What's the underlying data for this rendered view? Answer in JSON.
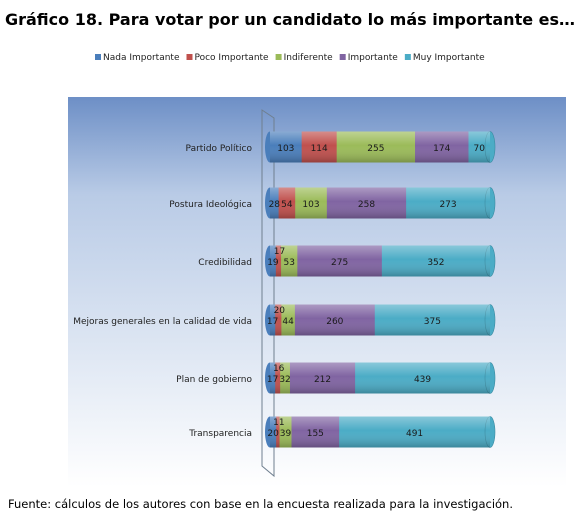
{
  "chart_data": {
    "type": "bar",
    "orientation": "horizontal",
    "stacked": true,
    "title": "Gráfico 18. Para votar por un candidato lo más importante es…",
    "categories": [
      "Partido Político",
      "Postura Ideológica",
      "Credibilidad",
      "Mejoras generales en la calidad de vida",
      "Plan de gobierno",
      "Transparencia"
    ],
    "series": [
      {
        "name": "Nada Importante",
        "color": "#4a7ebb",
        "values": [
          103,
          28,
          19,
          17,
          17,
          20
        ]
      },
      {
        "name": "Poco Importante",
        "color": "#c0504d",
        "values": [
          114,
          54,
          17,
          20,
          16,
          11
        ]
      },
      {
        "name": "Indiferente",
        "color": "#9bbb59",
        "values": [
          255,
          103,
          53,
          44,
          32,
          39
        ]
      },
      {
        "name": "Importante",
        "color": "#8064a2",
        "values": [
          174,
          258,
          275,
          260,
          212,
          155
        ]
      },
      {
        "name": "Muy Importante",
        "color": "#4bacc6",
        "values": [
          70,
          273,
          352,
          375,
          439,
          491
        ]
      }
    ],
    "legend_position": "top",
    "grid": false
  },
  "source_note": "Fuente: cálculos de los autores con base en la encuesta realizada para la investigación."
}
